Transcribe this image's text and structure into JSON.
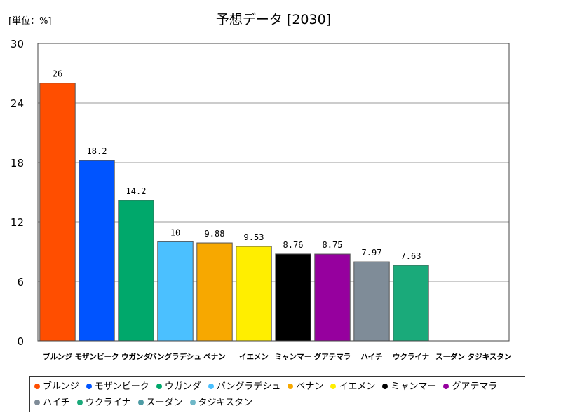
{
  "chart_data": {
    "type": "bar",
    "title": "予想データ [2030]",
    "unit_label": "[単位：%]",
    "ylim": [
      0,
      30
    ],
    "yticks": [
      0,
      6,
      12,
      18,
      24,
      30
    ],
    "grid": true,
    "legend_position": "bottom",
    "categories": [
      "ブルンジ",
      "モザンビーク",
      "ウガンダ",
      "バングラデシュ",
      "ベナン",
      "イエメン",
      "ミャンマー",
      "グアテマラ",
      "ハイチ",
      "ウクライナ",
      "スーダン",
      "タジキスタン"
    ],
    "values": [
      26,
      18.2,
      14.2,
      10,
      9.88,
      9.53,
      8.76,
      8.75,
      7.97,
      7.63,
      null,
      null
    ],
    "value_labels": [
      "26",
      "18.2",
      "14.2",
      "10",
      "9.88",
      "9.53",
      "8.76",
      "8.75",
      "7.97",
      "7.63",
      "",
      ""
    ],
    "colors": [
      "#FF4E00",
      "#0054FF",
      "#00A86B",
      "#4BC0FF",
      "#F7A800",
      "#FFEE00",
      "#000000",
      "#96009E",
      "#7F8C98",
      "#1AAA7A",
      "#4E9CA5",
      "#6FB8C8"
    ]
  }
}
